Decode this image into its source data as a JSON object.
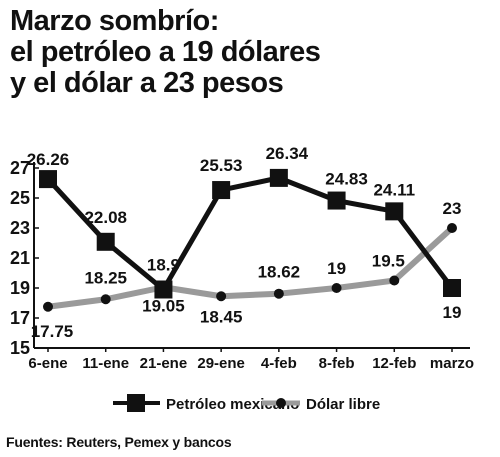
{
  "title_lines": [
    "Marzo sombrío:",
    "el petróleo a 19 dólares",
    "y el dólar a 23 pesos"
  ],
  "source": "Fuentes: Reuters, Pemex y bancos",
  "colors": {
    "petroleo": "#111111",
    "dolar": "#9a9a9a",
    "axis": "#111111"
  },
  "chart_data": {
    "type": "line",
    "title": "Marzo sombrío: el petróleo a 19 dólares y el dólar a 23 pesos",
    "xlabel": "",
    "ylabel": "",
    "categories": [
      "6-ene",
      "11-ene",
      "21-ene",
      "29-ene",
      "4-feb",
      "8-feb",
      "12-feb",
      "marzo"
    ],
    "ylim": [
      15,
      27
    ],
    "yticks": [
      15,
      17,
      19,
      21,
      23,
      25,
      27
    ],
    "grid": false,
    "legend_position": "bottom",
    "series": [
      {
        "name": "Petróleo mexicano",
        "marker": "square",
        "values": [
          26.26,
          22.08,
          18.9,
          25.53,
          26.34,
          24.83,
          24.11,
          19
        ],
        "labels": [
          "26.26",
          "22.08",
          "18.9",
          "25.53",
          "26.34",
          "24.83",
          "24.11",
          "19"
        ]
      },
      {
        "name": "Dólar libre",
        "marker": "circle",
        "values": [
          17.75,
          18.25,
          19.05,
          18.45,
          18.62,
          19,
          19.5,
          23
        ],
        "labels": [
          "17.75",
          "18.25",
          "19.05",
          "18.45",
          "18.62",
          "19",
          "19.5",
          "23"
        ]
      }
    ]
  }
}
